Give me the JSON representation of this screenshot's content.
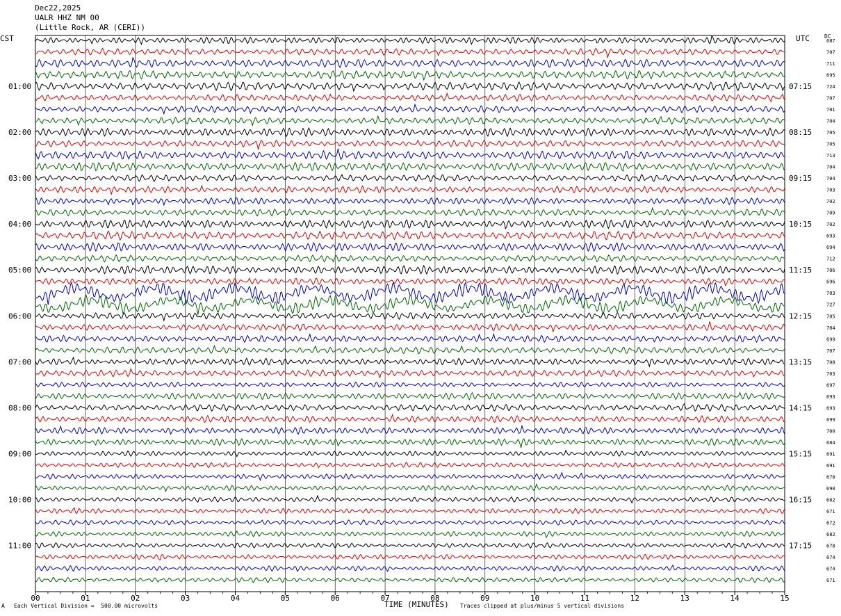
{
  "header": {
    "date": "Dec22,2025",
    "station": "UALR HHZ NM 00",
    "location": "(Little Rock, AR (CERI))"
  },
  "left_label": "CST",
  "right_label": "UTC",
  "dc_label": "DC",
  "footer": {
    "small_mark": "A",
    "scale_note": "Each Vertical Division =  500.00 microvolts",
    "clip_note": "Traces clipped at plus/minus 5 vertical divisions"
  },
  "chart_data": {
    "type": "line",
    "title": "",
    "xlabel": "TIME (MINUTES)",
    "ylabel": "",
    "xlim": [
      0,
      15
    ],
    "x_ticks": [
      "00",
      "01",
      "02",
      "03",
      "04",
      "05",
      "06",
      "07",
      "08",
      "09",
      "10",
      "11",
      "12",
      "13",
      "14",
      "15"
    ],
    "left_times": [
      "01:00",
      "02:00",
      "03:00",
      "04:00",
      "05:00",
      "06:00",
      "07:00",
      "08:00",
      "09:00",
      "10:00",
      "11:00"
    ],
    "right_times": [
      "07:15",
      "08:15",
      "09:15",
      "10:15",
      "11:15",
      "12:15",
      "13:15",
      "14:15",
      "15:15",
      "16:15",
      "17:15"
    ],
    "trace_colors": [
      "#000000",
      "#e00000",
      "#0000c8",
      "#006400"
    ],
    "dc_values": [
      "687",
      "707",
      "711",
      "695",
      "724",
      "707",
      "701",
      "704",
      "705",
      "705",
      "713",
      "704",
      "704",
      "703",
      "702",
      "709",
      "702",
      "693",
      "694",
      "712",
      "706",
      "696",
      "703",
      "727",
      "705",
      "704",
      "699",
      "707",
      "708",
      "703",
      "697",
      "693",
      "693",
      "699",
      "700",
      "684",
      "691",
      "691",
      "678",
      "690",
      "682",
      "671",
      "672",
      "682",
      "678",
      "674",
      "674",
      "671"
    ],
    "trace_amplitude": [
      4,
      4,
      5,
      5,
      5,
      4,
      4,
      4,
      5,
      4,
      5,
      5,
      4,
      4,
      4,
      4,
      5,
      5,
      5,
      4,
      5,
      4,
      8,
      7,
      4,
      4,
      4,
      4,
      4,
      4,
      3,
      4,
      4,
      4,
      4,
      4,
      3,
      3,
      3,
      3,
      3,
      3,
      3,
      3,
      3,
      3,
      3,
      3
    ]
  }
}
